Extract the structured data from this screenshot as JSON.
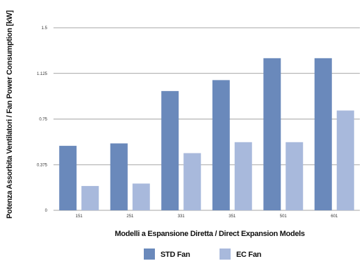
{
  "chart_data": {
    "type": "bar",
    "categories": [
      "151",
      "251",
      "331",
      "351",
      "501",
      "601"
    ],
    "series": [
      {
        "name": "STD Fan",
        "values": [
          0.53,
          0.55,
          0.98,
          1.07,
          1.25,
          1.25
        ],
        "color": "#6a89bb"
      },
      {
        "name": "EC Fan",
        "values": [
          0.2,
          0.22,
          0.47,
          0.56,
          0.56,
          0.82
        ],
        "color": "#a8b9dc"
      }
    ],
    "yticks": [
      "0",
      "0.375",
      "0.75",
      "1.125",
      "1.5"
    ],
    "ylim": [
      0,
      1.5
    ],
    "xlabel": "Modelli a Espansione Diretta / Direct Expansion Models",
    "ylabel": "Potenza Assorbita Ventilatori / Fan Power Consumption [kW]",
    "grid": true,
    "legend_position": "bottom"
  }
}
